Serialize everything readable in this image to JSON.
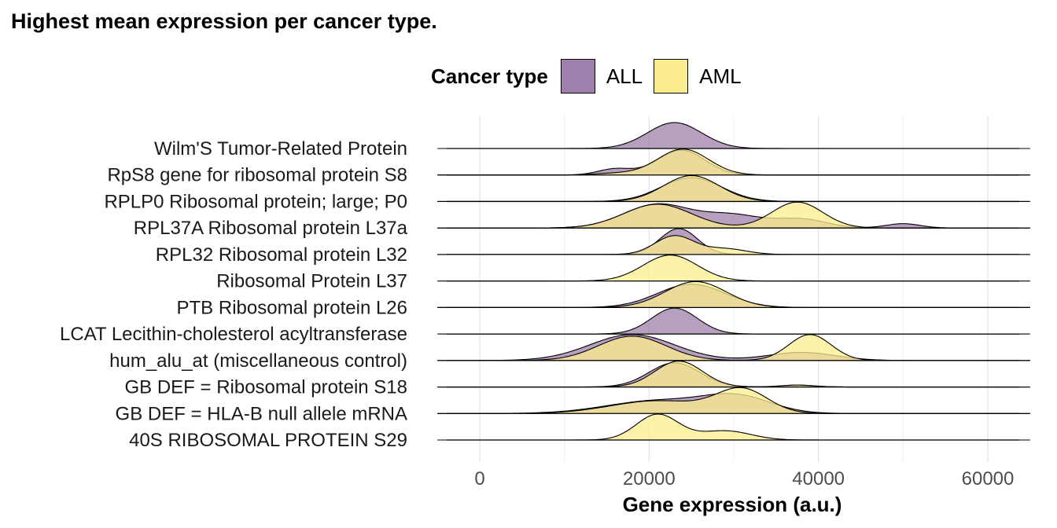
{
  "chart_data": {
    "type": "ridgeline",
    "title": "Highest mean expression per cancer type.",
    "xlabel": "Gene expression (a.u.)",
    "ylabel": "",
    "xlim": [
      -5000,
      65000
    ],
    "xticks": [
      0,
      20000,
      40000,
      60000
    ],
    "xtick_labels": [
      "0",
      "20000",
      "40000",
      "60000"
    ],
    "grid": true,
    "legend": {
      "title": "Cancer type",
      "placement": "top",
      "entries": [
        {
          "name": "ALL",
          "color": "#9F7FAB"
        },
        {
          "name": "AML",
          "color": "#FCEE8E"
        }
      ]
    },
    "genes": [
      {
        "label": "Wilm'S Tumor-Related Protein",
        "ALL": [
          {
            "mean": 23000,
            "sd": 3200,
            "w": 1.0
          }
        ],
        "AML": []
      },
      {
        "label": "RpS8 gene for ribosomal protein S8",
        "ALL": [
          {
            "mean": 23800,
            "sd": 2800,
            "w": 0.85
          },
          {
            "mean": 16000,
            "sd": 2000,
            "w": 0.15
          }
        ],
        "AML": [
          {
            "mean": 24000,
            "sd": 3000,
            "w": 0.95
          },
          {
            "mean": 16000,
            "sd": 2500,
            "w": 0.05
          }
        ]
      },
      {
        "label": "RPLP0 Ribosomal protein; large; P0",
        "ALL": [
          {
            "mean": 25000,
            "sd": 3600,
            "w": 1.0
          }
        ],
        "AML": [
          {
            "mean": 25000,
            "sd": 3300,
            "w": 1.0
          }
        ]
      },
      {
        "label": "RPL37A Ribosomal protein L37a",
        "ALL": [
          {
            "mean": 21000,
            "sd": 4000,
            "w": 0.55
          },
          {
            "mean": 30000,
            "sd": 3500,
            "w": 0.25
          },
          {
            "mean": 38000,
            "sd": 3000,
            "w": 0.15
          },
          {
            "mean": 50000,
            "sd": 2000,
            "w": 0.05
          }
        ],
        "AML": [
          {
            "mean": 21000,
            "sd": 4000,
            "w": 0.55
          },
          {
            "mean": 37500,
            "sd": 3000,
            "w": 0.45
          }
        ]
      },
      {
        "label": "RPL32 Ribosomal protein L32",
        "ALL": [
          {
            "mean": 23500,
            "sd": 2200,
            "w": 1.0
          }
        ],
        "AML": [
          {
            "mean": 23000,
            "sd": 2300,
            "w": 0.75
          },
          {
            "mean": 29000,
            "sd": 2500,
            "w": 0.25
          }
        ]
      },
      {
        "label": "Ribosomal Protein L37",
        "ALL": [],
        "AML": [
          {
            "mean": 22500,
            "sd": 3200,
            "w": 1.0
          }
        ]
      },
      {
        "label": "PTB Ribosomal protein L26",
        "ALL": [
          {
            "mean": 25000,
            "sd": 4000,
            "w": 1.0
          }
        ],
        "AML": [
          {
            "mean": 25500,
            "sd": 3600,
            "w": 1.0
          }
        ]
      },
      {
        "label": "LCAT Lecithin-cholesterol acyltransferase",
        "ALL": [
          {
            "mean": 23000,
            "sd": 2700,
            "w": 1.0
          }
        ],
        "AML": []
      },
      {
        "label": "hum_alu_at (miscellaneous control)",
        "ALL": [
          {
            "mean": 18000,
            "sd": 5000,
            "w": 0.8
          },
          {
            "mean": 38000,
            "sd": 4000,
            "w": 0.2
          }
        ],
        "AML": [
          {
            "mean": 18000,
            "sd": 4000,
            "w": 0.6
          },
          {
            "mean": 39000,
            "sd": 2500,
            "w": 0.4
          }
        ]
      },
      {
        "label": "GB DEF = Ribosomal protein S18",
        "ALL": [
          {
            "mean": 23000,
            "sd": 3000,
            "w": 0.95
          },
          {
            "mean": 37500,
            "sd": 2000,
            "w": 0.05
          }
        ],
        "AML": [
          {
            "mean": 23500,
            "sd": 2800,
            "w": 0.95
          },
          {
            "mean": 37500,
            "sd": 2000,
            "w": 0.05
          }
        ]
      },
      {
        "label": "GB DEF = HLA-B null allele mRNA",
        "ALL": [
          {
            "mean": 30500,
            "sd": 4000,
            "w": 0.45
          },
          {
            "mean": 21000,
            "sd": 6000,
            "w": 0.55
          }
        ],
        "AML": [
          {
            "mean": 31000,
            "sd": 3000,
            "w": 0.5
          },
          {
            "mean": 21000,
            "sd": 5500,
            "w": 0.5
          }
        ]
      },
      {
        "label": "40S RIBOSOMAL PROTEIN S29",
        "ALL": [],
        "AML": [
          {
            "mean": 21000,
            "sd": 2500,
            "w": 0.7
          },
          {
            "mean": 29000,
            "sd": 3000,
            "w": 0.3
          }
        ]
      }
    ]
  }
}
